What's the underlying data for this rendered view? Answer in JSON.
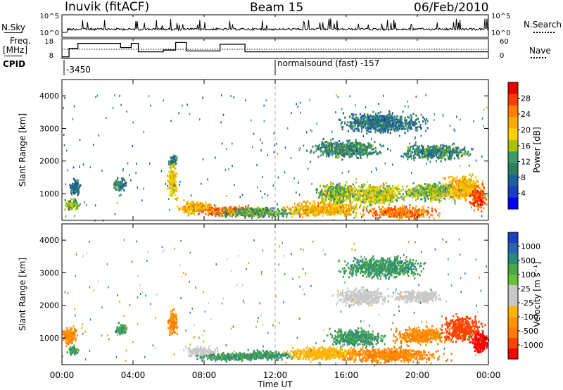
{
  "header": {
    "station": "Inuvik (fitACF)",
    "beam": "Beam 15",
    "date": "06/Feb/2010"
  },
  "panels_top": {
    "nsky_label": "N.Sky",
    "nsky_ticks": [
      "10^5",
      "10^0"
    ],
    "nsearch_label": "N.Search",
    "nsearch_ticks": [
      "10^5",
      "10^0"
    ],
    "freq_label_1": "Freq.",
    "freq_label_2": "[MHz]",
    "freq_ticks": [
      "18",
      "8"
    ],
    "nave_label": "Nave",
    "nave_ticks": [
      "60",
      "0"
    ],
    "cpid_label": "CPID",
    "cpid_1": "-3450",
    "cpid_2": "normalsound (fast) -157"
  },
  "colorbars": {
    "power": {
      "label": "Power [dB]",
      "ticks": [
        "28",
        "24",
        "20",
        "16",
        "12",
        "8",
        "4"
      ],
      "colors": [
        "#e60000",
        "#ff3c00",
        "#ff7f00",
        "#ffaa00",
        "#ffd000",
        "#a8c400",
        "#3c9a6a",
        "#2e7d5e",
        "#1f5f9f",
        "#1a3fbf",
        "#0000ff"
      ]
    },
    "velocity": {
      "label": "Velocity [m s⁻¹]",
      "ticks": [
        "1000",
        "500",
        "100",
        "25",
        "-25",
        "-100",
        "-500",
        "-1000"
      ],
      "colors": [
        "#1f3fbf",
        "#2a64b0",
        "#2e8a7a",
        "#4aa84a",
        "#66c23a",
        "#c8c8c8",
        "#c8c8c8",
        "#ffb400",
        "#ff9600",
        "#ff7a00",
        "#ff4400",
        "#ff0000"
      ]
    }
  },
  "axes": {
    "ylabel": "Slant Range [km]",
    "yticks": [
      "4000",
      "3000",
      "2000",
      "1000"
    ],
    "xticks": [
      "00:00",
      "04:00",
      "08:00",
      "12:00",
      "16:00",
      "20:00",
      "00:00"
    ],
    "xlabel": "Time UT"
  },
  "chart_data": {
    "type": "heatmap",
    "x_range_hours": [
      0,
      24
    ],
    "y_range_km": [
      180,
      4500
    ],
    "nave_ref_line": 30,
    "freq_steps": [
      [
        0.0,
        8.5
      ],
      [
        0.4,
        13.5
      ],
      [
        0.9,
        16.5
      ],
      [
        3.1,
        16.5
      ],
      [
        3.3,
        14.0
      ],
      [
        3.9,
        16.5
      ],
      [
        4.3,
        11.5
      ],
      [
        5.5,
        11.5
      ],
      [
        5.7,
        12.5
      ],
      [
        6.4,
        17.0
      ],
      [
        7.0,
        12.0
      ],
      [
        8.9,
        16.0
      ],
      [
        10.3,
        11.5
      ],
      [
        24.0,
        11.5
      ]
    ],
    "power_clusters": [
      [
        0.5,
        700,
        0.5,
        250,
        14
      ],
      [
        0.7,
        1200,
        0.4,
        350,
        8
      ],
      [
        3.2,
        1300,
        0.5,
        250,
        10
      ],
      [
        6.2,
        1400,
        0.35,
        700,
        18
      ],
      [
        6.2,
        2050,
        0.3,
        200,
        10
      ],
      [
        7.5,
        600,
        1.3,
        250,
        20
      ],
      [
        9.5,
        500,
        2.5,
        200,
        24
      ],
      [
        11.0,
        450,
        3.0,
        200,
        12
      ],
      [
        14.8,
        550,
        3.0,
        300,
        20
      ],
      [
        15.5,
        1050,
        1.6,
        400,
        14
      ],
      [
        17.8,
        1000,
        2.2,
        400,
        16
      ],
      [
        19.2,
        450,
        2.5,
        250,
        24
      ],
      [
        20.8,
        1100,
        2.0,
        350,
        14
      ],
      [
        22.6,
        1200,
        1.4,
        500,
        20
      ],
      [
        23.4,
        900,
        0.6,
        450,
        26
      ],
      [
        16.0,
        2400,
        2.5,
        350,
        10
      ],
      [
        21.0,
        2300,
        2.5,
        300,
        10
      ],
      [
        18.0,
        3200,
        3.0,
        400,
        8
      ]
    ],
    "velocity_clusters": [
      [
        0.4,
        1100,
        0.5,
        350,
        -100
      ],
      [
        0.6,
        650,
        0.4,
        200,
        100
      ],
      [
        3.3,
        1300,
        0.5,
        200,
        100
      ],
      [
        6.2,
        1500,
        0.35,
        500,
        -100
      ],
      [
        7.8,
        600,
        1.2,
        200,
        25
      ],
      [
        9.5,
        450,
        2.6,
        150,
        100
      ],
      [
        11.5,
        500,
        2.0,
        180,
        100
      ],
      [
        14.8,
        550,
        3.0,
        250,
        -25
      ],
      [
        16.5,
        1050,
        2.0,
        350,
        100
      ],
      [
        18.5,
        500,
        3.5,
        300,
        -100
      ],
      [
        20.2,
        1100,
        2.0,
        350,
        -100
      ],
      [
        22.5,
        1300,
        1.5,
        500,
        -500
      ],
      [
        23.5,
        900,
        0.6,
        450,
        -1000
      ],
      [
        16.8,
        2300,
        1.8,
        350,
        25
      ],
      [
        20.0,
        2300,
        1.8,
        250,
        25
      ],
      [
        18.0,
        3200,
        3.0,
        400,
        100
      ]
    ]
  }
}
